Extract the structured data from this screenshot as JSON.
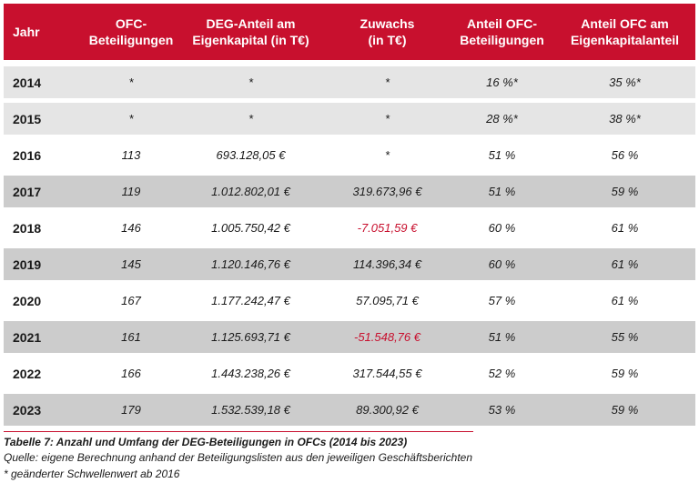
{
  "headers": [
    "Jahr",
    "OFC-\nBeteiligungen",
    "DEG-Anteil am\nEigenkapital (in T€)",
    "Zuwachs\n(in T€)",
    "Anteil OFC-\nBeteiligungen",
    "Anteil OFC am\nEigenkapitalanteil"
  ],
  "header_lines": [
    [
      "Jahr"
    ],
    [
      "OFC-",
      "Beteiligungen"
    ],
    [
      "DEG-Anteil am",
      "Eigenkapital (in T€)"
    ],
    [
      "Zuwachs",
      "(in T€)"
    ],
    [
      "Anteil OFC-",
      "Beteiligungen"
    ],
    [
      "Anteil OFC am",
      "Eigenkapitalanteil"
    ]
  ],
  "rows": [
    {
      "jahr": "2014",
      "beteiligungen": "*",
      "deg_anteil": "*",
      "zuwachs": "*",
      "anteil_ofc": "16 %*",
      "anteil_eigenkapital": "35 %*"
    },
    {
      "jahr": "2015",
      "beteiligungen": "*",
      "deg_anteil": "*",
      "zuwachs": "*",
      "anteil_ofc": "28 %*",
      "anteil_eigenkapital": "38 %*"
    },
    {
      "jahr": "2016",
      "beteiligungen": "113",
      "deg_anteil": "693.128,05 €",
      "zuwachs": "*",
      "anteil_ofc": "51 %",
      "anteil_eigenkapital": "56 %"
    },
    {
      "jahr": "2017",
      "beteiligungen": "119",
      "deg_anteil": "1.012.802,01 €",
      "zuwachs": "319.673,96 €",
      "anteil_ofc": "51 %",
      "anteil_eigenkapital": "59 %"
    },
    {
      "jahr": "2018",
      "beteiligungen": "146",
      "deg_anteil": "1.005.750,42 €",
      "zuwachs": "-7.051,59 €",
      "anteil_ofc": "60 %",
      "anteil_eigenkapital": "61 %"
    },
    {
      "jahr": "2019",
      "beteiligungen": "145",
      "deg_anteil": "1.120.146,76 €",
      "zuwachs": "114.396,34 €",
      "anteil_ofc": "60 %",
      "anteil_eigenkapital": "61 %"
    },
    {
      "jahr": "2020",
      "beteiligungen": "167",
      "deg_anteil": "1.177.242,47 €",
      "zuwachs": "57.095,71 €",
      "anteil_ofc": "57 %",
      "anteil_eigenkapital": "61 %"
    },
    {
      "jahr": "2021",
      "beteiligungen": "161",
      "deg_anteil": "1.125.693,71 €",
      "zuwachs": "-51.548,76 €",
      "anteil_ofc": "51 %",
      "anteil_eigenkapital": "55 %"
    },
    {
      "jahr": "2022",
      "beteiligungen": "166",
      "deg_anteil": "1.443.238,26 €",
      "zuwachs": "317.544,55 €",
      "anteil_ofc": "52 %",
      "anteil_eigenkapital": "59 %"
    },
    {
      "jahr": "2023",
      "beteiligungen": "179",
      "deg_anteil": "1.532.539,18 €",
      "zuwachs": "89.300,92 €",
      "anteil_ofc": "53 %",
      "anteil_eigenkapital": "59 %"
    }
  ],
  "caption": "Tabelle 7: Anzahl und Umfang der DEG-Beteiligungen in OFCs (2014 bis 2023)",
  "source": "Quelle: eigene Berechnung anhand der Beteiligungslisten aus den jeweiligen Geschäftsberichten",
  "note": "* geänderter Schwellenwert ab 2016",
  "colors": {
    "header_bg": "#c8102e",
    "negative": "#c8102e",
    "row_light": "#e5e5e5",
    "row_dark": "#cccccc"
  }
}
